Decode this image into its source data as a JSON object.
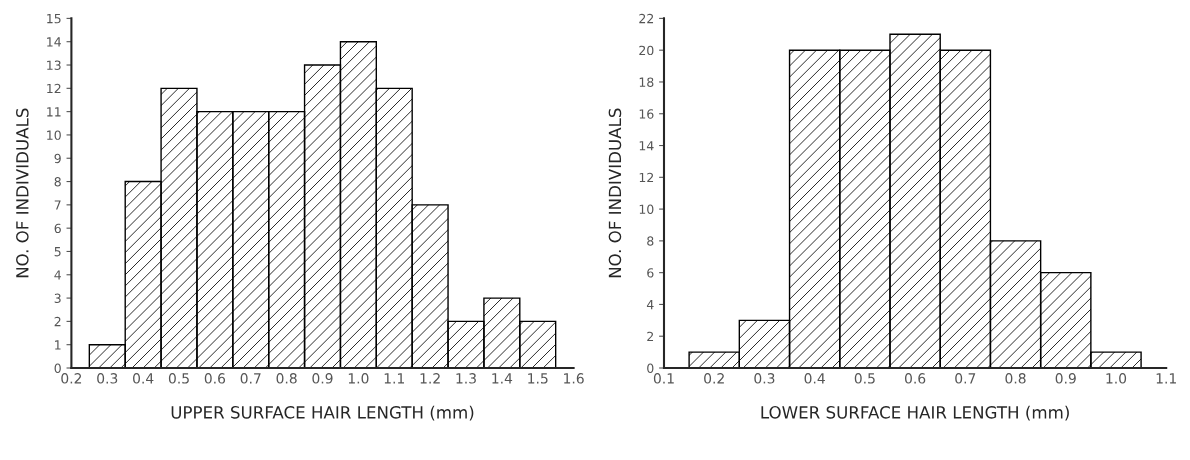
{
  "chart_data": [
    {
      "type": "histogram",
      "xlabel": "UPPER SURFACE HAIR LENGTH (mm)",
      "ylabel": "NO. OF INDIVIDUALS",
      "color": "#000000",
      "bins": [
        0.25,
        0.35,
        0.45,
        0.55,
        0.65,
        0.75,
        0.85,
        0.95,
        1.05,
        1.15,
        1.25,
        1.35,
        1.45,
        1.55
      ],
      "values": [
        1,
        8,
        12,
        11,
        11,
        11,
        13,
        14,
        12,
        7,
        2,
        3,
        2
      ],
      "xlim": [
        0.2,
        1.6
      ],
      "xticks": [
        0.2,
        0.3,
        0.4,
        0.5,
        0.6,
        0.7,
        0.8,
        0.9,
        {
          "value": 1.0,
          "label": "1.0"
        },
        1.1,
        1.2,
        1.3,
        1.4,
        1.5,
        1.6
      ],
      "ylim": [
        0,
        15
      ],
      "yticks": [
        0,
        1,
        2,
        3,
        4,
        5,
        6,
        7,
        8,
        9,
        10,
        11,
        12,
        13,
        14,
        15
      ]
    },
    {
      "type": "histogram",
      "xlabel": "LOWER SURFACE HAIR LENGTH (mm)",
      "ylabel": "NO. OF INDIVIDUALS",
      "color": "#000000",
      "bins": [
        0.15,
        0.25,
        0.35,
        0.45,
        0.55,
        0.65,
        0.75,
        0.85,
        0.95,
        1.05
      ],
      "values": [
        1,
        3,
        20,
        20,
        21,
        20,
        8,
        6,
        1
      ],
      "xlim": [
        0.1,
        1.1
      ],
      "xticks": [
        0.1,
        0.2,
        0.3,
        0.4,
        0.5,
        0.6,
        0.7,
        0.8,
        0.9,
        {
          "value": 1.0,
          "label": "1.0"
        },
        1.1
      ],
      "ylim": [
        0,
        22
      ],
      "yticks": [
        0,
        2,
        4,
        6,
        8,
        10,
        12,
        14,
        16,
        18,
        20,
        22
      ]
    }
  ]
}
